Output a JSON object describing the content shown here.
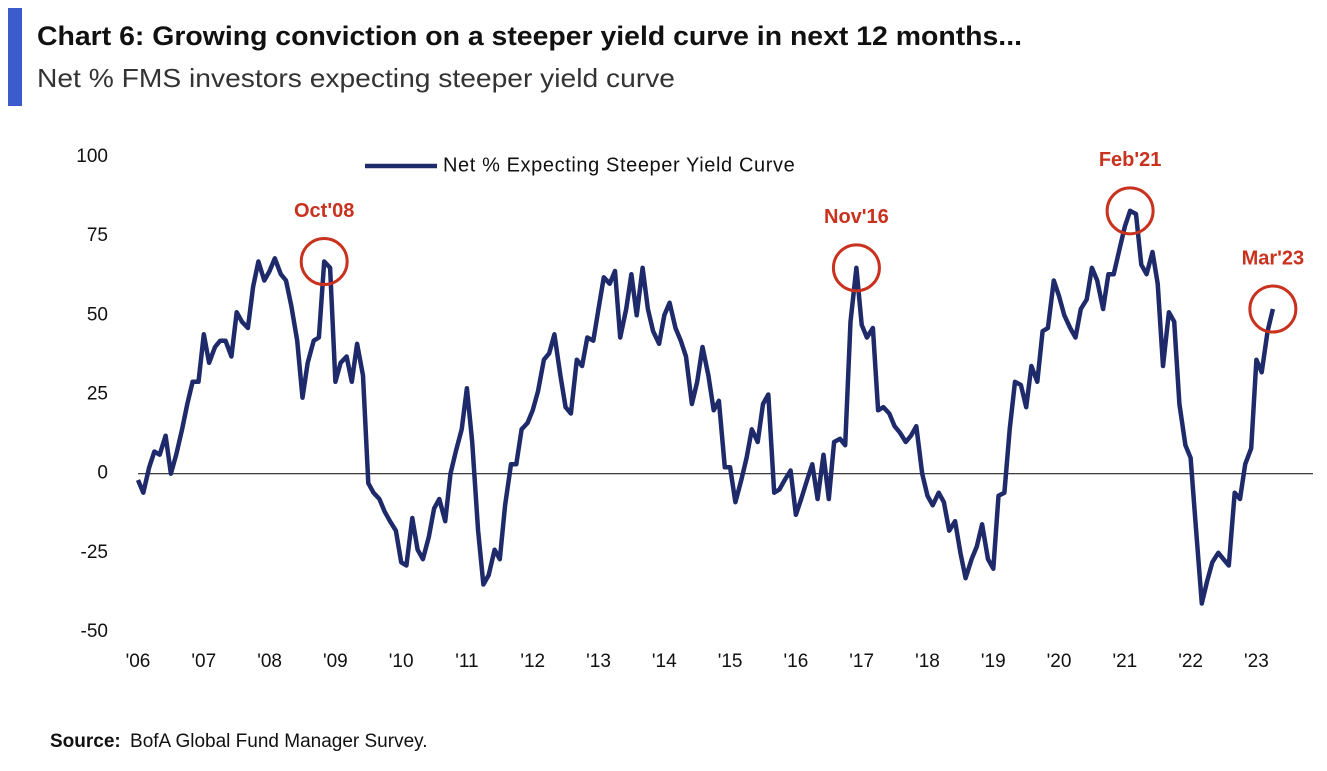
{
  "chart_data": {
    "type": "line",
    "title": "Chart 6: Growing conviction on a steeper yield curve in next 12 months...",
    "subtitle": "Net % FMS investors expecting steeper yield curve",
    "source_label": "Source:",
    "source": "BofA Global Fund Manager Survey.",
    "xlim": [
      2006,
      2023.86
    ],
    "xticks": [
      {
        "value": 2006,
        "label": "'06"
      },
      {
        "value": 2007,
        "label": "'07"
      },
      {
        "value": 2008,
        "label": "'08"
      },
      {
        "value": 2009,
        "label": "'09"
      },
      {
        "value": 2010,
        "label": "'10"
      },
      {
        "value": 2011,
        "label": "'11"
      },
      {
        "value": 2012,
        "label": "'12"
      },
      {
        "value": 2013,
        "label": "'13"
      },
      {
        "value": 2014,
        "label": "'14"
      },
      {
        "value": 2015,
        "label": "'15"
      },
      {
        "value": 2016,
        "label": "'16"
      },
      {
        "value": 2017,
        "label": "'17"
      },
      {
        "value": 2018,
        "label": "'18"
      },
      {
        "value": 2019,
        "label": "'19"
      },
      {
        "value": 2020,
        "label": "'20"
      },
      {
        "value": 2021,
        "label": "'21"
      },
      {
        "value": 2022,
        "label": "'22"
      },
      {
        "value": 2023,
        "label": "'23"
      }
    ],
    "ylim": [
      -50,
      100
    ],
    "yticks": [
      -50,
      -25,
      0,
      25,
      50,
      75,
      100
    ],
    "zero_line": true,
    "grid": false,
    "legend": "top",
    "x": [
      2006.0,
      2006.08,
      2006.17,
      2006.25,
      2006.33,
      2006.42,
      2006.5,
      2006.58,
      2006.67,
      2006.75,
      2006.83,
      2006.92,
      2007.0,
      2007.08,
      2007.17,
      2007.25,
      2007.33,
      2007.42,
      2007.5,
      2007.58,
      2007.67,
      2007.75,
      2007.83,
      2007.92,
      2008.0,
      2008.08,
      2008.17,
      2008.25,
      2008.33,
      2008.42,
      2008.5,
      2008.58,
      2008.67,
      2008.75,
      2008.83,
      2008.92,
      2009.0,
      2009.08,
      2009.17,
      2009.25,
      2009.33,
      2009.42,
      2009.5,
      2009.58,
      2009.67,
      2009.75,
      2009.83,
      2009.92,
      2010.0,
      2010.08,
      2010.17,
      2010.25,
      2010.33,
      2010.42,
      2010.5,
      2010.58,
      2010.67,
      2010.75,
      2010.83,
      2010.92,
      2011.0,
      2011.08,
      2011.17,
      2011.25,
      2011.33,
      2011.42,
      2011.5,
      2011.58,
      2011.67,
      2011.75,
      2011.83,
      2011.92,
      2012.0,
      2012.08,
      2012.17,
      2012.25,
      2012.33,
      2012.42,
      2012.5,
      2012.58,
      2012.67,
      2012.75,
      2012.83,
      2012.92,
      2013.0,
      2013.08,
      2013.17,
      2013.25,
      2013.33,
      2013.42,
      2013.5,
      2013.58,
      2013.67,
      2013.75,
      2013.83,
      2013.92,
      2014.0,
      2014.08,
      2014.17,
      2014.25,
      2014.33,
      2014.42,
      2014.5,
      2014.58,
      2014.67,
      2014.75,
      2014.83,
      2014.92,
      2015.0,
      2015.08,
      2015.17,
      2015.25,
      2015.33,
      2015.42,
      2015.5,
      2015.58,
      2015.67,
      2015.75,
      2015.83,
      2015.92,
      2016.0,
      2016.08,
      2016.17,
      2016.25,
      2016.33,
      2016.42,
      2016.5,
      2016.58,
      2016.67,
      2016.75,
      2016.83,
      2016.92,
      2017.0,
      2017.08,
      2017.17,
      2017.25,
      2017.33,
      2017.42,
      2017.5,
      2017.58,
      2017.67,
      2017.75,
      2017.83,
      2017.92,
      2018.0,
      2018.08,
      2018.17,
      2018.25,
      2018.33,
      2018.42,
      2018.5,
      2018.58,
      2018.67,
      2018.75,
      2018.83,
      2018.92,
      2019.0,
      2019.08,
      2019.17,
      2019.25,
      2019.33,
      2019.42,
      2019.5,
      2019.58,
      2019.67,
      2019.75,
      2019.83,
      2019.92,
      2020.0,
      2020.08,
      2020.17,
      2020.25,
      2020.33,
      2020.42,
      2020.5,
      2020.58,
      2020.67,
      2020.75,
      2020.83,
      2020.92,
      2021.0,
      2021.08,
      2021.17,
      2021.25,
      2021.33,
      2021.42,
      2021.5,
      2021.58,
      2021.67,
      2021.75,
      2021.83,
      2021.92,
      2022.0,
      2022.08,
      2022.17,
      2022.25,
      2022.33,
      2022.42,
      2022.5,
      2022.58,
      2022.67,
      2022.75,
      2022.83,
      2022.92,
      2023.0,
      2023.08,
      2023.17,
      2023.25
    ],
    "series": [
      {
        "name": "Net % Expecting Steeper Yield Curve",
        "color": "#1f2a6b",
        "values": [
          -2,
          -6,
          2,
          7,
          6,
          12,
          0,
          6,
          14,
          22,
          29,
          29,
          44,
          35,
          40,
          42,
          42,
          37,
          51,
          48,
          46,
          59,
          67,
          61,
          64,
          68,
          63,
          61,
          53,
          42,
          24,
          35,
          42,
          43,
          67,
          65,
          29,
          35,
          37,
          29,
          41,
          31,
          -3,
          -6,
          -8,
          -12,
          -15,
          -18,
          -28,
          -29,
          -14,
          -24,
          -27,
          -20,
          -11,
          -8,
          -15,
          0,
          7,
          14,
          27,
          10,
          -18,
          -35,
          -32,
          -24,
          -27,
          -10,
          3,
          3,
          14,
          16,
          20,
          26,
          36,
          38,
          44,
          31,
          21,
          19,
          36,
          34,
          43,
          42,
          52,
          62,
          60,
          64,
          43,
          52,
          63,
          50,
          65,
          52,
          45,
          41,
          50,
          54,
          46,
          42,
          37,
          22,
          29,
          40,
          31,
          20,
          23,
          2,
          2,
          -9,
          -2,
          5,
          14,
          10,
          22,
          25,
          -6,
          -5,
          -2,
          1,
          -13,
          -8,
          -2,
          3,
          -8,
          6,
          -8,
          10,
          11,
          9,
          48,
          65,
          47,
          43,
          46,
          20,
          21,
          19,
          15,
          13,
          10,
          12,
          15,
          0,
          -7,
          -10,
          -6,
          -9,
          -18,
          -15,
          -25,
          -33,
          -27,
          -23,
          -16,
          -27,
          -30,
          -7,
          -6,
          14,
          29,
          28,
          21,
          34,
          29,
          45,
          46,
          61,
          56,
          50,
          46,
          43,
          52,
          55,
          65,
          61,
          52,
          63,
          63,
          71,
          78,
          83,
          82,
          66,
          63,
          70,
          60,
          34,
          51,
          48,
          22,
          9,
          5,
          -17,
          -41,
          -34,
          -28,
          -25,
          -27,
          -29,
          -6,
          -8,
          3,
          8,
          36,
          32,
          45,
          52
        ]
      }
    ],
    "annotations": [
      {
        "text": "Oct'08",
        "x": 2008.83,
        "y": 67
      },
      {
        "text": "Nov'16",
        "x": 2016.92,
        "y": 65
      },
      {
        "text": "Feb'21",
        "x": 2021.08,
        "y": 83
      },
      {
        "text": "Mar'23",
        "x": 2023.25,
        "y": 52
      }
    ],
    "annotation_color": "#c8321e"
  }
}
